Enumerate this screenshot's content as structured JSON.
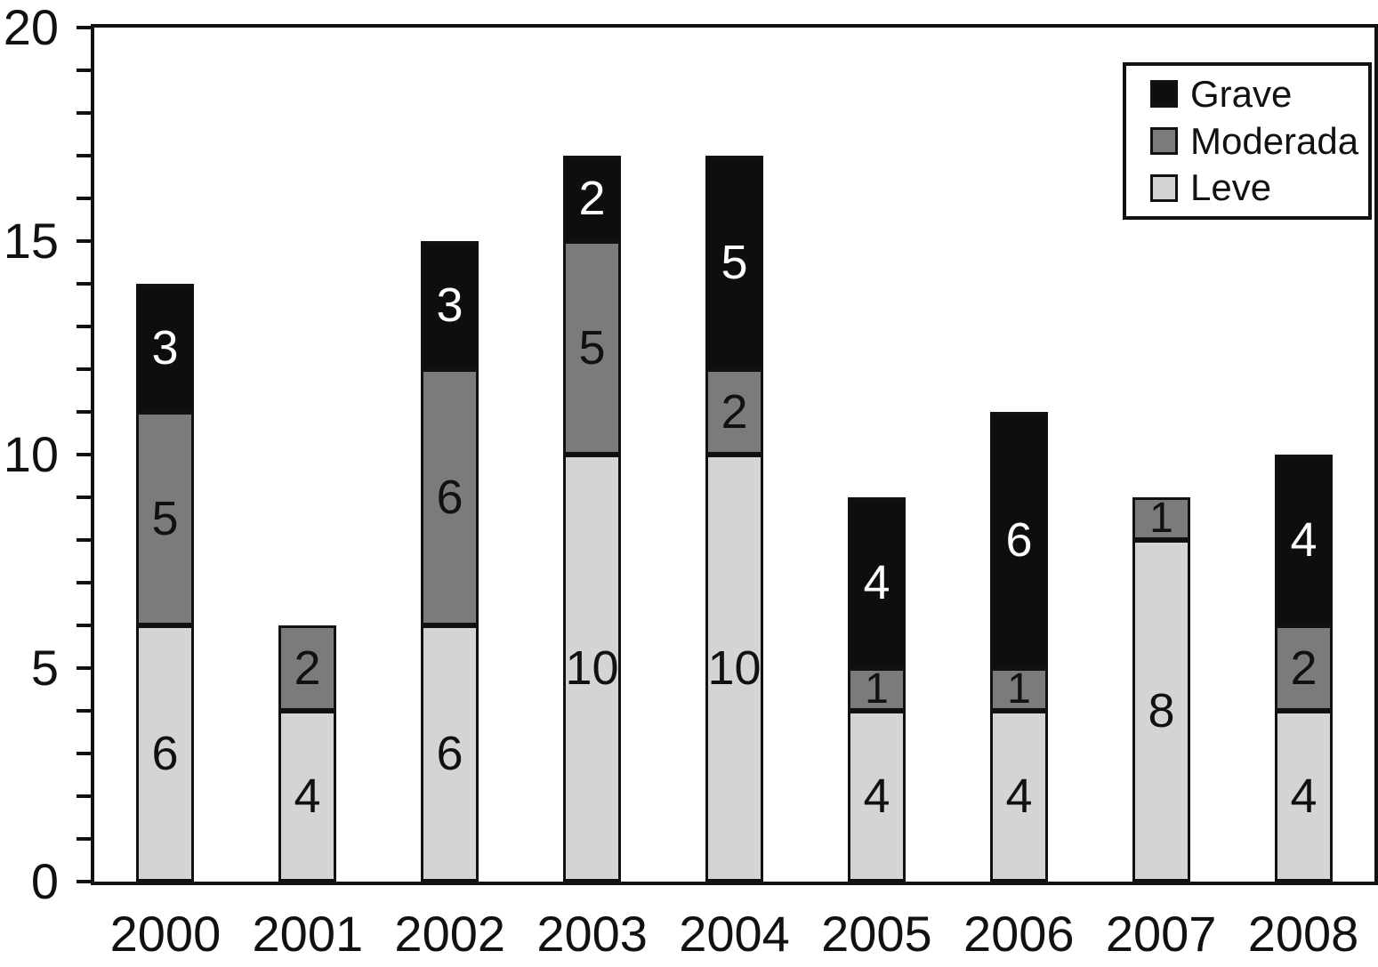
{
  "chart_data": {
    "type": "bar",
    "stacked": true,
    "title": "",
    "xlabel": "",
    "ylabel": "",
    "categories": [
      "2000",
      "2001",
      "2002",
      "2003",
      "2004",
      "2005",
      "2006",
      "2007",
      "2008"
    ],
    "series": [
      {
        "name": "Leve",
        "color": "#d4d4d4",
        "label_color": "#111111",
        "values": [
          6,
          4,
          6,
          10,
          10,
          4,
          4,
          8,
          4
        ]
      },
      {
        "name": "Moderada",
        "color": "#7b7b7b",
        "label_color": "#111111",
        "values": [
          5,
          2,
          6,
          5,
          2,
          1,
          1,
          1,
          2
        ]
      },
      {
        "name": "Grave",
        "color": "#0e0e0e",
        "label_color": "#ffffff",
        "values": [
          3,
          0,
          3,
          2,
          5,
          4,
          6,
          0,
          4
        ]
      }
    ],
    "totals": [
      14,
      6,
      15,
      17,
      17,
      9,
      11,
      9,
      10
    ],
    "ylim": [
      0,
      20
    ],
    "yticks": [
      0,
      5,
      10,
      15,
      20
    ],
    "minor_tick_step": 1,
    "grid": false,
    "bar_value_labels": true,
    "legend": {
      "position": "top-right",
      "order": [
        "Grave",
        "Moderada",
        "Leve"
      ]
    }
  },
  "colors": {
    "axis": "#111111",
    "background": "#ffffff"
  }
}
